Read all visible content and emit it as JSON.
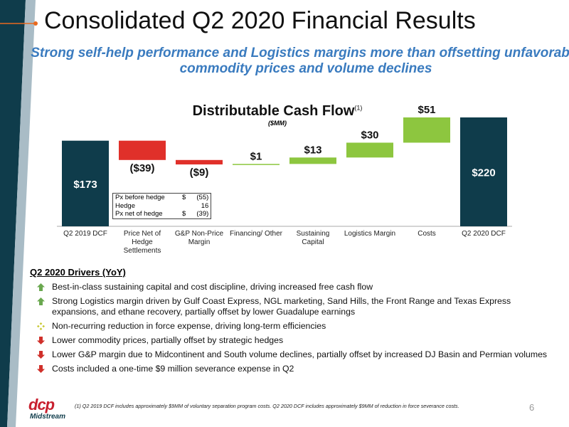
{
  "header": {
    "title": "Consolidated Q2 2020 Financial Results",
    "subtitle": "Strong self-help performance and Logistics margins more than offsetting unfavorable commodity prices and volume declines"
  },
  "chart_data": {
    "type": "waterfall",
    "title": "Distributable Cash Flow",
    "title_note": "(1)",
    "subtitle": "($MM)",
    "categories": [
      "Q2 2019 DCF",
      "Price Net of Hedge Settlements",
      "G&P Non-Price Margin",
      "Financing/ Other",
      "Sustaining Capital",
      "Logistics Margin",
      "Costs",
      "Q2 2020 DCF"
    ],
    "values": [
      173,
      -39,
      -9,
      1,
      13,
      30,
      51,
      220
    ],
    "value_labels": [
      "$173",
      "($39)",
      "($9)",
      "$1",
      "$13",
      "$30",
      "$51",
      "$220"
    ],
    "bar_kinds": [
      "total",
      "delta",
      "delta",
      "delta",
      "delta",
      "delta",
      "delta",
      "total"
    ],
    "colors": {
      "total": "#0f3c4b",
      "increase": "#8dc63f",
      "decrease": "#e0302a"
    },
    "inset_table": [
      {
        "label": "Px before hedge",
        "currency": "$",
        "amount": "(55)"
      },
      {
        "label": "Hedge",
        "amount": "16"
      },
      {
        "label": "Px net of hedge",
        "currency": "$",
        "amount": "(39)"
      }
    ]
  },
  "drivers": {
    "heading": "Q2 2020 Drivers (YoY)",
    "items": [
      {
        "icon": "up",
        "text": "Best-in-class sustaining capital and cost discipline, driving increased free cash flow"
      },
      {
        "icon": "up",
        "text": "Strong Logistics margin driven by Gulf Coast Express, NGL marketing, Sand Hills, the Front Range and Texas Express expansions, and ethane recovery, partially offset by lower Guadalupe earnings"
      },
      {
        "icon": "neutral",
        "text": "Non-recurring reduction in force expense, driving long-term efficiencies"
      },
      {
        "icon": "down",
        "text": "Lower commodity prices, partially offset by strategic hedges"
      },
      {
        "icon": "down",
        "text": "Lower G&P margin due to Midcontinent and South volume declines, partially offset by increased DJ Basin and Permian volumes"
      },
      {
        "icon": "down",
        "text": "Costs included a one-time $9 million severance expense in Q2"
      }
    ]
  },
  "footer": {
    "footnote": "(1)  Q2 2019 DCF includes approximately $9MM of voluntary separation program costs. Q2 2020 DCF includes approximately $9MM of reduction in force severance costs.",
    "page_number": "6",
    "logo": "dcp",
    "logo_sub": "Midstream"
  }
}
